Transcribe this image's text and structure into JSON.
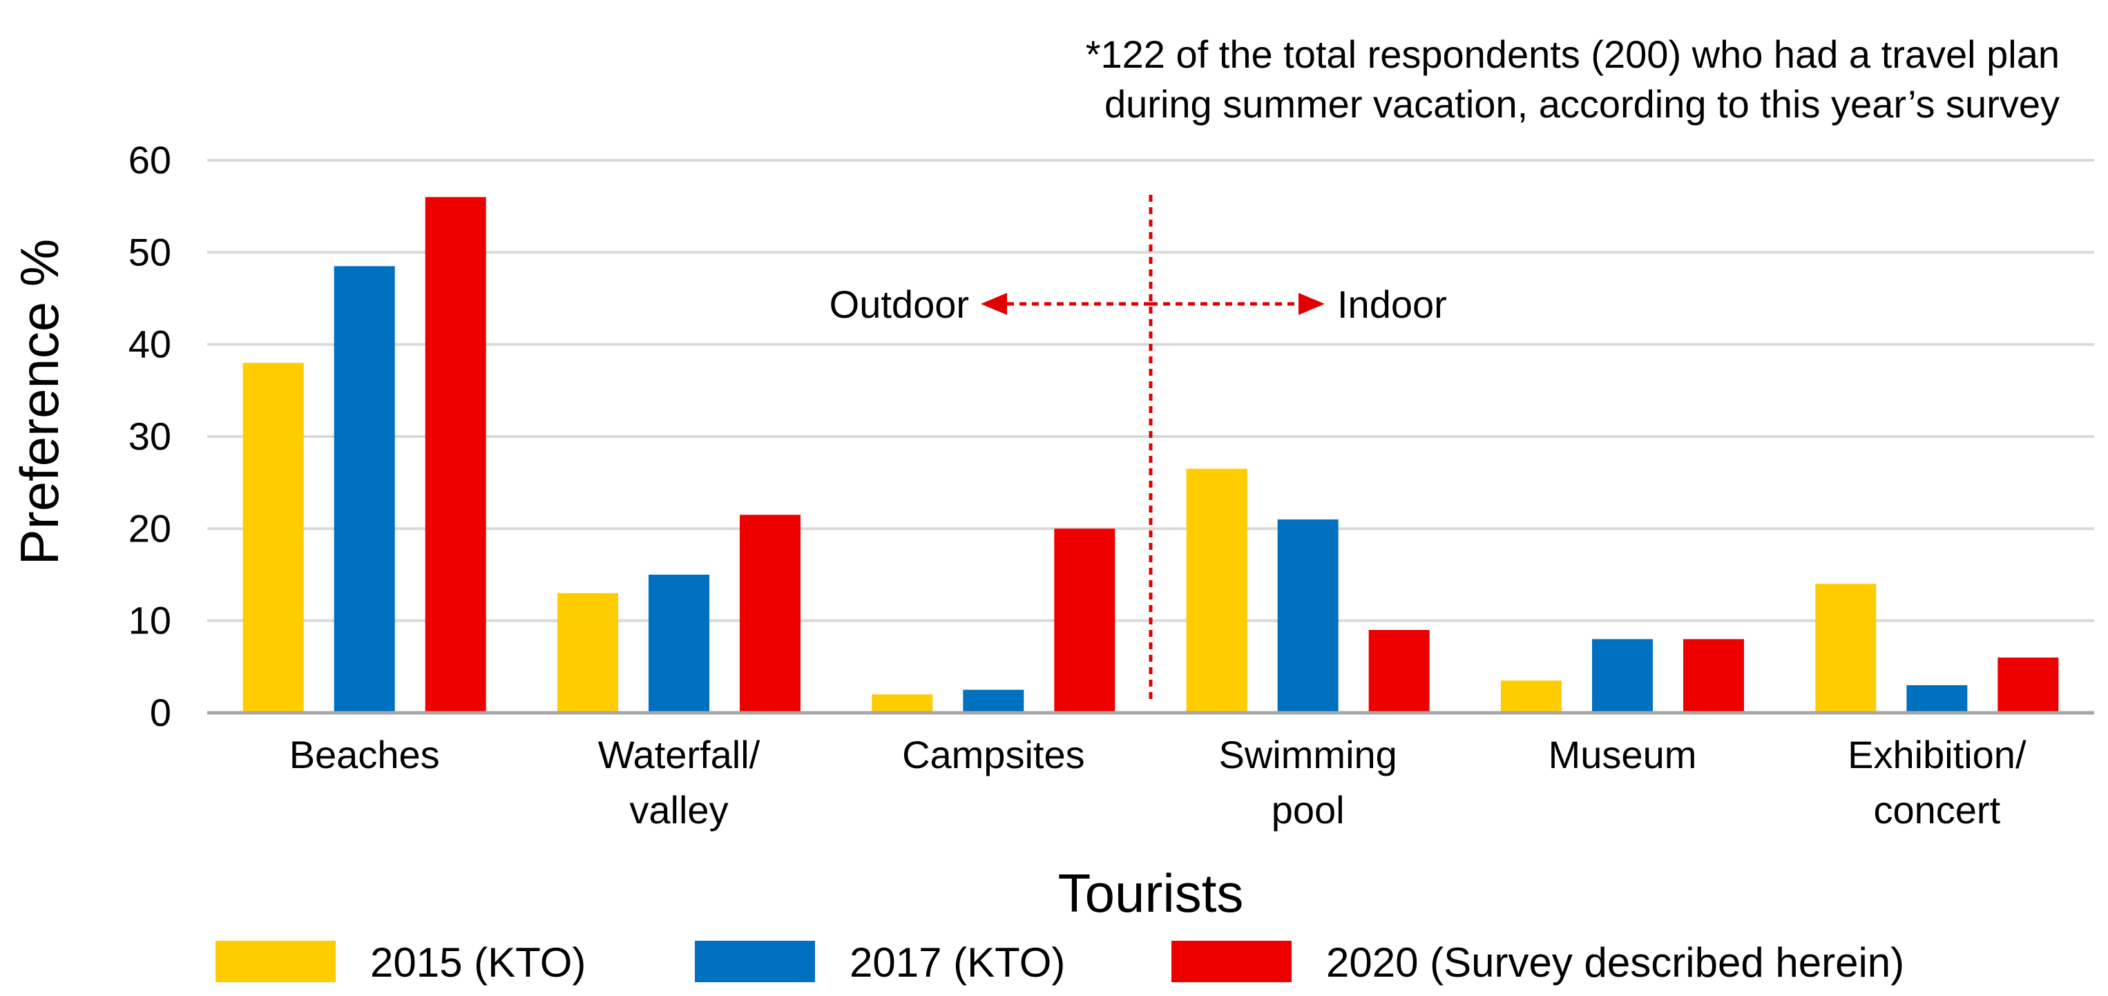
{
  "chart_data": {
    "type": "bar",
    "note_lines": [
      "*122 of the total respondents (200) who had a travel plan",
      "during summer vacation, according to this year’s survey"
    ],
    "ylabel": "Preference %",
    "xlabel": "Tourists",
    "ylim": [
      0,
      60
    ],
    "yticks": [
      0,
      10,
      20,
      30,
      40,
      50,
      60
    ],
    "ytick_labels": [
      "0",
      "10",
      "20",
      "30",
      "40",
      "50",
      "60"
    ],
    "grid": true,
    "categories": [
      {
        "lines": [
          "Beaches"
        ]
      },
      {
        "lines": [
          "Waterfall/",
          "valley"
        ]
      },
      {
        "lines": [
          "Campsites"
        ]
      },
      {
        "lines": [
          "Swimming",
          "pool"
        ]
      },
      {
        "lines": [
          "Museum"
        ]
      },
      {
        "lines": [
          "Exhibition/",
          "concert"
        ]
      }
    ],
    "series": [
      {
        "name": "2015 (KTO)",
        "color": "#FFCC00",
        "values": [
          38,
          13,
          2,
          26.5,
          3.5,
          14
        ]
      },
      {
        "name": "2017 (KTO)",
        "color": "#0070C0",
        "values": [
          48.5,
          15,
          2.5,
          21,
          8,
          3
        ]
      },
      {
        "name": "2020 (Survey described herein)",
        "color": "#EE0000",
        "values": [
          56,
          21.5,
          20,
          9,
          8,
          6
        ]
      }
    ],
    "divider": {
      "after_category_index": 2,
      "color": "#E00000"
    },
    "annotations": {
      "left_label": "Outdoor",
      "right_label": "Indoor"
    },
    "legend_position": "bottom"
  }
}
